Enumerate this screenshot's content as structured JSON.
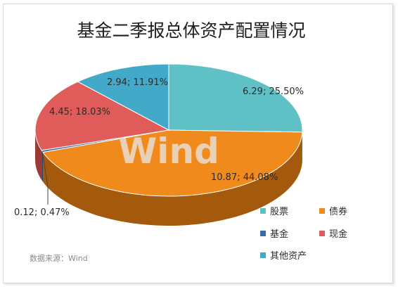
{
  "chart_data": {
    "type": "pie",
    "title": "基金二季报总体资产配置情况",
    "categories": [
      "股票",
      "债券",
      "基金",
      "现金",
      "其他资产"
    ],
    "values": [
      6.29,
      10.87,
      0.12,
      4.45,
      2.94
    ],
    "percents": [
      25.5,
      44.08,
      0.47,
      18.03,
      11.91
    ],
    "data_labels": [
      "6.29; 25.50%",
      "10.87; 44.08%",
      "0.12; 0.47%",
      "4.45; 18.03%",
      "2.94; 11.91%"
    ],
    "colors": [
      "#5fc0c6",
      "#f08a1c",
      "#3a6ea5",
      "#e05c5a",
      "#43a9c9"
    ],
    "side_colors": [
      "#3f8f93",
      "#a45a0d",
      "#244a70",
      "#9c3836",
      "#2b7590"
    ],
    "legend_position": "bottom-right",
    "style": "3d"
  },
  "source_text": "数据来源：Wind",
  "watermark_text": "Wind"
}
